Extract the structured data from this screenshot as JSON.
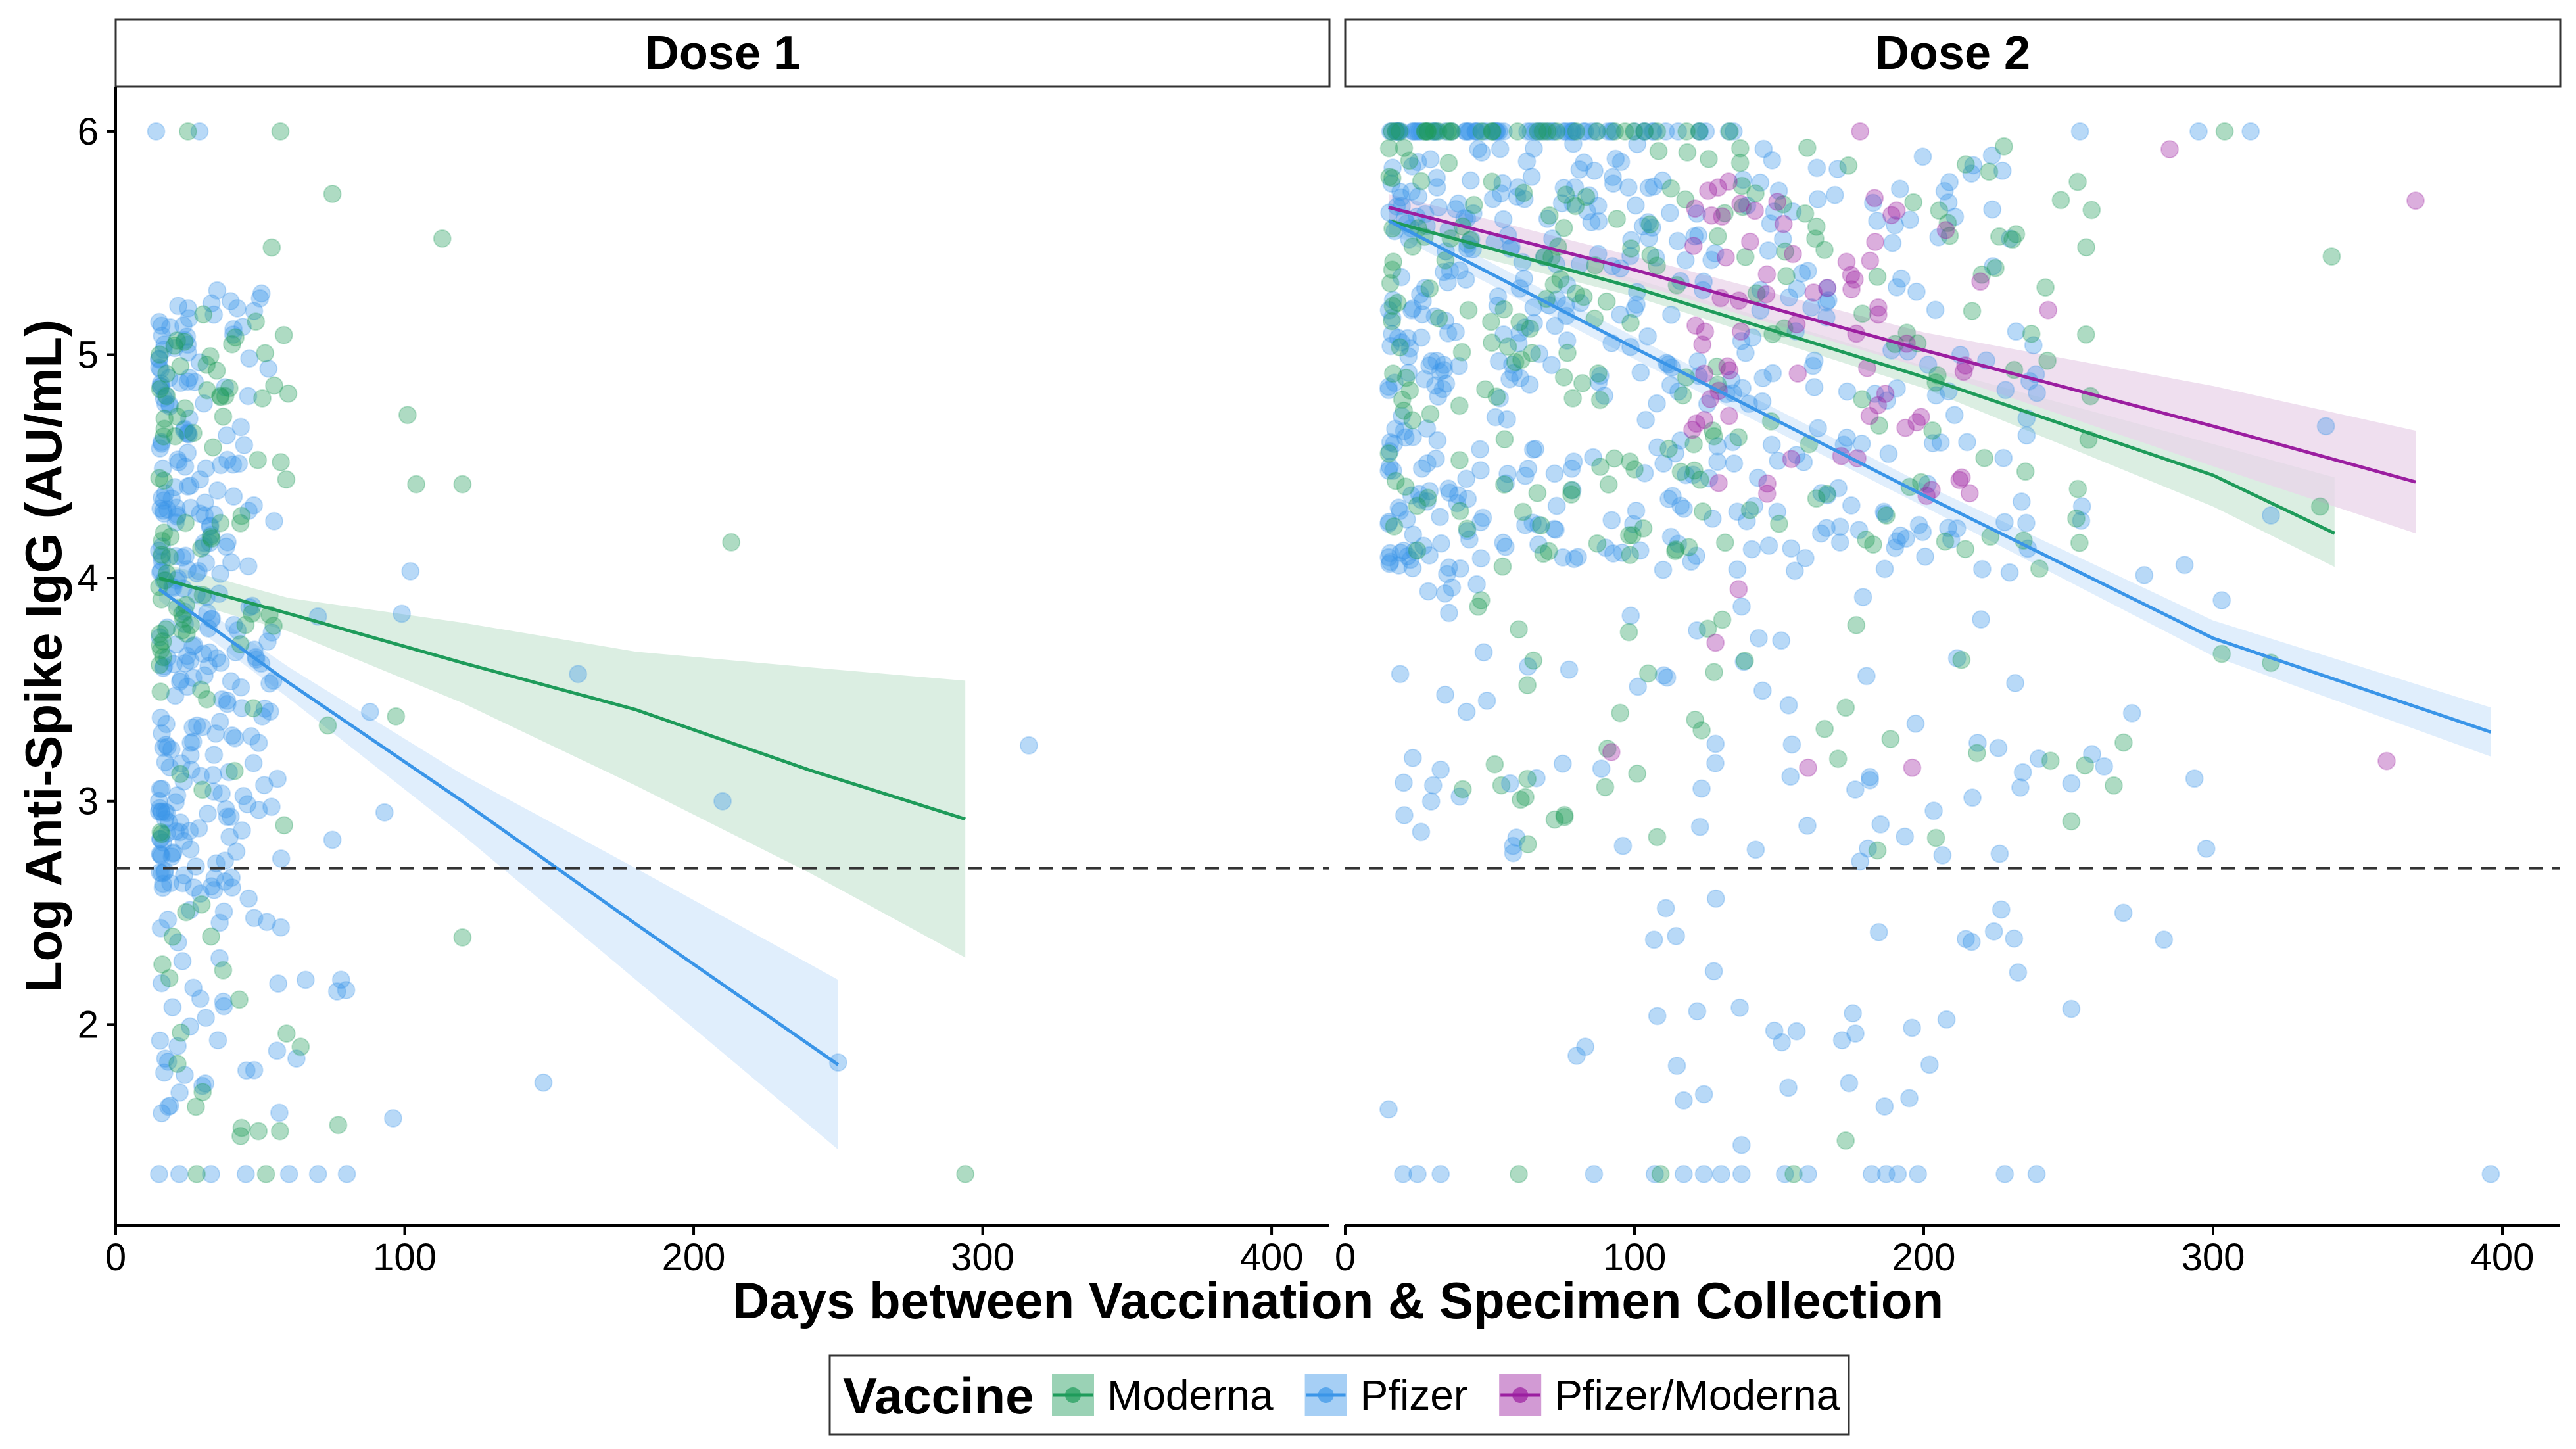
{
  "chart_data": {
    "type": "scatter",
    "xlabel": "Days between Vaccination & Specimen Collection",
    "ylabel": "Log Anti-Spike IgG (AU/mL)",
    "xlim": [
      0,
      420
    ],
    "ylim": [
      1.1,
      6.2
    ],
    "x_ticks": [
      0,
      100,
      200,
      300,
      400
    ],
    "y_ticks": [
      2,
      3,
      4,
      5,
      6
    ],
    "threshold_y": 2.7,
    "legend": {
      "title": "Vaccine",
      "position": "bottom",
      "entries": [
        {
          "name": "Moderna",
          "color": "#1e9b5a"
        },
        {
          "name": "Pfizer",
          "color": "#3a95e8"
        },
        {
          "name": "Pfizer/Moderna",
          "color": "#9b1ea0"
        }
      ]
    },
    "panels": [
      {
        "title": "Dose 1",
        "fits": [
          {
            "series": "Moderna",
            "color": "#1e9b5a",
            "band": "#cfe8d8",
            "x": [
              15,
              60,
              120,
              180,
              240,
              294
            ],
            "y": [
              4.0,
              3.84,
              3.62,
              3.41,
              3.14,
              2.92
            ],
            "lower": [
              3.93,
              3.76,
              3.44,
              3.07,
              2.68,
              2.3
            ],
            "upper": [
              4.07,
              3.91,
              3.8,
              3.67,
              3.6,
              3.54
            ]
          },
          {
            "series": "Pfizer",
            "color": "#3a95e8",
            "band": "#d6e8fb",
            "x": [
              15,
              60,
              120,
              180,
              250
            ],
            "y": [
              3.95,
              3.53,
              3.0,
              2.45,
              1.82
            ],
            "lower": [
              3.9,
              3.46,
              2.85,
              2.2,
              1.44
            ],
            "upper": [
              4.0,
              3.6,
              3.12,
              2.7,
              2.2
            ]
          }
        ],
        "clusters": [
          {
            "series": "Pfizer",
            "x": [
              15,
              55
            ],
            "y": [
              2.6,
              5.3
            ],
            "n": 240,
            "seed": 11
          },
          {
            "series": "Pfizer",
            "x": [
              15,
              80
            ],
            "y": [
              1.6,
              3.9
            ],
            "n": 80,
            "seed": 12
          },
          {
            "series": "Moderna",
            "x": [
              15,
              60
            ],
            "y": [
              3.6,
              5.2
            ],
            "n": 75,
            "seed": 13
          },
          {
            "series": "Moderna",
            "x": [
              15,
              80
            ],
            "y": [
              1.5,
              3.6
            ],
            "n": 28,
            "seed": 14
          }
        ],
        "points": [
          {
            "series": "Pfizer",
            "x": 14,
            "y": 6.0
          },
          {
            "series": "Pfizer",
            "x": 29,
            "y": 6.0
          },
          {
            "series": "Moderna",
            "x": 25,
            "y": 6.0
          },
          {
            "series": "Moderna",
            "x": 57,
            "y": 6.0
          },
          {
            "series": "Moderna",
            "x": 75,
            "y": 5.72
          },
          {
            "series": "Moderna",
            "x": 113,
            "y": 5.52
          },
          {
            "series": "Moderna",
            "x": 54,
            "y": 5.48
          },
          {
            "series": "Moderna",
            "x": 101,
            "y": 4.73
          },
          {
            "series": "Moderna",
            "x": 104,
            "y": 4.42
          },
          {
            "series": "Moderna",
            "x": 120,
            "y": 4.42
          },
          {
            "series": "Moderna",
            "x": 213,
            "y": 4.16
          },
          {
            "series": "Pfizer",
            "x": 102,
            "y": 4.03
          },
          {
            "series": "Pfizer",
            "x": 99,
            "y": 3.84
          },
          {
            "series": "Pfizer",
            "x": 160,
            "y": 3.57
          },
          {
            "series": "Moderna",
            "x": 97,
            "y": 3.38
          },
          {
            "series": "Pfizer",
            "x": 316,
            "y": 3.25
          },
          {
            "series": "Pfizer",
            "x": 210,
            "y": 3.0
          },
          {
            "series": "Moderna",
            "x": 120,
            "y": 2.39
          },
          {
            "series": "Pfizer",
            "x": 148,
            "y": 1.74
          },
          {
            "series": "Pfizer",
            "x": 96,
            "y": 1.58
          },
          {
            "series": "Pfizer",
            "x": 250,
            "y": 1.83
          },
          {
            "series": "Moderna",
            "x": 294,
            "y": 1.33
          },
          {
            "series": "Pfizer",
            "x": 80,
            "y": 1.33
          },
          {
            "series": "Pfizer",
            "x": 70,
            "y": 1.33
          },
          {
            "series": "Pfizer",
            "x": 60,
            "y": 1.33
          },
          {
            "series": "Pfizer",
            "x": 45,
            "y": 1.33
          },
          {
            "series": "Pfizer",
            "x": 33,
            "y": 1.33
          },
          {
            "series": "Pfizer",
            "x": 22,
            "y": 1.33
          },
          {
            "series": "Pfizer",
            "x": 15,
            "y": 1.33
          },
          {
            "series": "Moderna",
            "x": 28,
            "y": 1.33
          },
          {
            "series": "Moderna",
            "x": 52,
            "y": 1.33
          },
          {
            "series": "Moderna",
            "x": 64,
            "y": 1.9
          },
          {
            "series": "Moderna",
            "x": 77,
            "y": 1.55
          },
          {
            "series": "Pfizer",
            "x": 78,
            "y": 2.2
          },
          {
            "series": "Pfizer",
            "x": 88,
            "y": 3.4
          },
          {
            "series": "Pfizer",
            "x": 93,
            "y": 2.95
          }
        ]
      },
      {
        "title": "Dose 2",
        "fits": [
          {
            "series": "Moderna",
            "color": "#1e9b5a",
            "band": "#cfe8d8",
            "x": [
              15,
              100,
              200,
              300,
              342
            ],
            "y": [
              5.6,
              5.3,
              4.9,
              4.46,
              4.2
            ],
            "lower": [
              5.54,
              5.26,
              4.85,
              4.32,
              4.05
            ],
            "upper": [
              5.66,
              5.34,
              4.95,
              4.6,
              4.45
            ]
          },
          {
            "series": "Pfizer",
            "color": "#3a95e8",
            "band": "#d6e8fb",
            "x": [
              15,
              100,
              200,
              300,
              396
            ],
            "y": [
              5.6,
              5.03,
              4.37,
              3.73,
              3.31
            ],
            "lower": [
              5.55,
              4.98,
              4.32,
              3.65,
              3.2
            ],
            "upper": [
              5.65,
              5.08,
              4.42,
              3.81,
              3.42
            ]
          },
          {
            "series": "Pfizer/Moderna",
            "color": "#9b1ea0",
            "band": "#ead4ea",
            "x": [
              15,
              100,
              200,
              300,
              370
            ],
            "y": [
              5.66,
              5.38,
              5.02,
              4.68,
              4.43
            ],
            "lower": [
              5.6,
              5.32,
              4.94,
              4.5,
              4.2
            ],
            "upper": [
              5.72,
              5.44,
              5.1,
              4.86,
              4.66
            ]
          }
        ],
        "clusters": [
          {
            "series": "Pfizer",
            "x": [
              15,
              140
            ],
            "y": [
              6.0,
              6.0
            ],
            "n": 70,
            "seed": 21
          },
          {
            "series": "Pfizer",
            "x": [
              15,
              240
            ],
            "y": [
              4.0,
              5.95
            ],
            "n": 420,
            "seed": 22
          },
          {
            "series": "Pfizer",
            "x": [
              20,
              300
            ],
            "y": [
              2.75,
              4.4
            ],
            "n": 95,
            "seed": 23
          },
          {
            "series": "Pfizer",
            "x": [
              105,
              240
            ],
            "y": [
              1.6,
              2.6
            ],
            "n": 28,
            "seed": 24
          },
          {
            "series": "Moderna",
            "x": [
              15,
              140
            ],
            "y": [
              6.0,
              6.0
            ],
            "n": 30,
            "seed": 25
          },
          {
            "series": "Moderna",
            "x": [
              15,
              260
            ],
            "y": [
              4.1,
              5.95
            ],
            "n": 200,
            "seed": 26
          },
          {
            "series": "Moderna",
            "x": [
              40,
              330
            ],
            "y": [
              2.8,
              4.3
            ],
            "n": 40,
            "seed": 27
          },
          {
            "series": "Pfizer/Moderna",
            "x": [
              120,
              220
            ],
            "y": [
              4.3,
              5.8
            ],
            "n": 70,
            "seed": 28
          }
        ],
        "points": [
          {
            "series": "Pfizer/Moderna",
            "x": 178,
            "y": 6.0
          },
          {
            "series": "Pfizer/Moderna",
            "x": 285,
            "y": 5.92
          },
          {
            "series": "Pfizer/Moderna",
            "x": 370,
            "y": 5.69
          },
          {
            "series": "Pfizer/Moderna",
            "x": 360,
            "y": 3.18
          },
          {
            "series": "Pfizer/Moderna",
            "x": 196,
            "y": 3.15
          },
          {
            "series": "Pfizer/Moderna",
            "x": 160,
            "y": 3.15
          },
          {
            "series": "Pfizer/Moderna",
            "x": 92,
            "y": 3.22
          },
          {
            "series": "Pfizer/Moderna",
            "x": 128,
            "y": 3.71
          },
          {
            "series": "Pfizer/Moderna",
            "x": 136,
            "y": 3.95
          },
          {
            "series": "Pfizer/Moderna",
            "x": 243,
            "y": 5.2
          },
          {
            "series": "Pfizer",
            "x": 313,
            "y": 6.0
          },
          {
            "series": "Pfizer",
            "x": 295,
            "y": 6.0
          },
          {
            "series": "Moderna",
            "x": 304,
            "y": 6.0
          },
          {
            "series": "Pfizer",
            "x": 254,
            "y": 6.0
          },
          {
            "series": "Moderna",
            "x": 341,
            "y": 5.44
          },
          {
            "series": "Pfizer",
            "x": 339,
            "y": 4.68
          },
          {
            "series": "Moderna",
            "x": 337,
            "y": 4.32
          },
          {
            "series": "Pfizer",
            "x": 320,
            "y": 4.28
          },
          {
            "series": "Pfizer",
            "x": 396,
            "y": 1.33
          },
          {
            "series": "Moderna",
            "x": 320,
            "y": 3.62
          },
          {
            "series": "Moderna",
            "x": 303,
            "y": 3.66
          },
          {
            "series": "Pfizer",
            "x": 303,
            "y": 3.9
          },
          {
            "series": "Pfizer",
            "x": 269,
            "y": 2.5
          },
          {
            "series": "Pfizer",
            "x": 283,
            "y": 2.38
          },
          {
            "series": "Pfizer",
            "x": 251,
            "y": 2.07
          },
          {
            "series": "Moderna",
            "x": 251,
            "y": 2.91
          },
          {
            "series": "Pfizer",
            "x": 251,
            "y": 3.08
          },
          {
            "series": "Pfizer",
            "x": 15,
            "y": 1.62
          },
          {
            "series": "Pfizer",
            "x": 20,
            "y": 1.33
          },
          {
            "series": "Pfizer",
            "x": 25,
            "y": 1.33
          },
          {
            "series": "Pfizer",
            "x": 33,
            "y": 1.33
          },
          {
            "series": "Moderna",
            "x": 60,
            "y": 1.33
          },
          {
            "series": "Pfizer",
            "x": 86,
            "y": 1.33
          },
          {
            "series": "Pfizer",
            "x": 107,
            "y": 1.33
          },
          {
            "series": "Moderna",
            "x": 109,
            "y": 1.33
          },
          {
            "series": "Pfizer",
            "x": 117,
            "y": 1.33
          },
          {
            "series": "Pfizer",
            "x": 124,
            "y": 1.33
          },
          {
            "series": "Pfizer",
            "x": 130,
            "y": 1.33
          },
          {
            "series": "Pfizer",
            "x": 137,
            "y": 1.33
          },
          {
            "series": "Pfizer",
            "x": 152,
            "y": 1.33
          },
          {
            "series": "Moderna",
            "x": 155,
            "y": 1.33
          },
          {
            "series": "Pfizer",
            "x": 160,
            "y": 1.33
          },
          {
            "series": "Pfizer",
            "x": 182,
            "y": 1.33
          },
          {
            "series": "Pfizer",
            "x": 187,
            "y": 1.33
          },
          {
            "series": "Pfizer",
            "x": 191,
            "y": 1.33
          },
          {
            "series": "Pfizer",
            "x": 198,
            "y": 1.33
          },
          {
            "series": "Pfizer",
            "x": 228,
            "y": 1.33
          },
          {
            "series": "Pfizer",
            "x": 239,
            "y": 1.33
          },
          {
            "series": "Moderna",
            "x": 173,
            "y": 1.48
          },
          {
            "series": "Pfizer",
            "x": 137,
            "y": 1.46
          },
          {
            "series": "Pfizer",
            "x": 117,
            "y": 1.66
          },
          {
            "series": "Pfizer",
            "x": 195,
            "y": 1.67
          },
          {
            "series": "Pfizer",
            "x": 202,
            "y": 1.82
          },
          {
            "series": "Pfizer",
            "x": 80,
            "y": 1.86
          },
          {
            "series": "Pfizer",
            "x": 83,
            "y": 1.9
          },
          {
            "series": "Pfizer",
            "x": 96,
            "y": 2.8
          },
          {
            "series": "Moderna",
            "x": 63,
            "y": 3.1
          },
          {
            "series": "Pfizer",
            "x": 57,
            "y": 3.08
          },
          {
            "series": "Pfizer",
            "x": 58,
            "y": 2.8
          },
          {
            "series": "Moderna",
            "x": 63,
            "y": 3.52
          },
          {
            "series": "Moderna",
            "x": 60,
            "y": 3.77
          },
          {
            "series": "Moderna",
            "x": 47,
            "y": 3.9
          },
          {
            "series": "Pfizer",
            "x": 19,
            "y": 3.57
          },
          {
            "series": "Pfizer",
            "x": 49,
            "y": 3.45
          },
          {
            "series": "Pfizer",
            "x": 178,
            "y": 2.73
          },
          {
            "series": "Moderna",
            "x": 184,
            "y": 2.78
          }
        ]
      }
    ]
  }
}
